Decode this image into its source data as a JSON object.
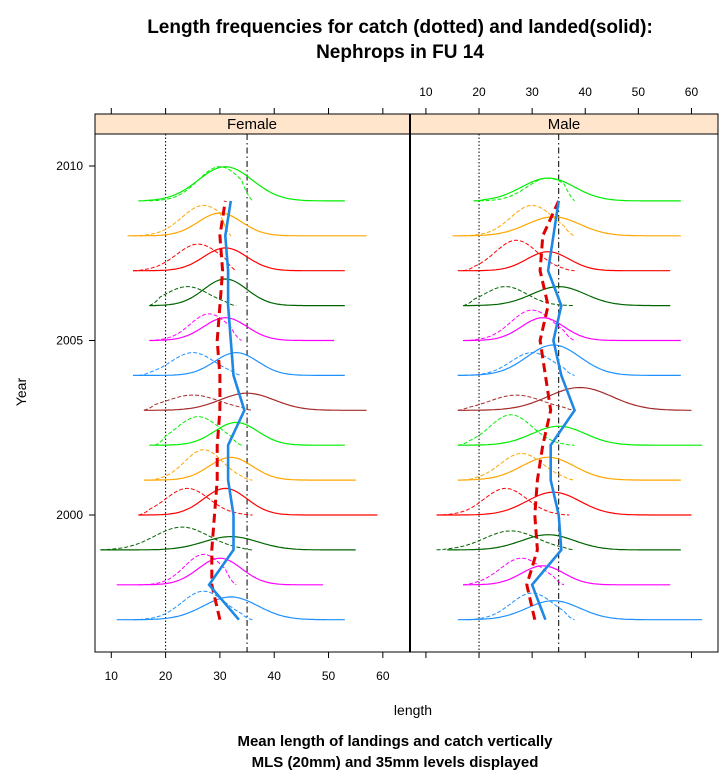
{
  "title_lines": [
    "Length frequencies for catch (dotted) and landed(solid):",
    "Nephrops in FU 14"
  ],
  "caption_lines": [
    "Mean length of landings and catch vertically",
    "MLS (20mm) and 35mm levels displayed"
  ],
  "colors": {
    "strip": "#FFE5CC",
    "landings_mean": "#1E88E5",
    "catch_mean": "#E00000",
    "years": {
      "1997": "#1E90FF",
      "1998": "#FF00FF",
      "1999": "#006400",
      "2000": "#FF0000",
      "2001": "#FFA500",
      "2002": "#00EE00",
      "2003": "#A52A2A",
      "2004": "#1E90FF",
      "2005": "#FF00FF",
      "2006": "#006400",
      "2007": "#FF0000",
      "2008": "#FFA500",
      "2009": "#00EE00"
    }
  },
  "chart_data": {
    "type": "line",
    "xlabel": "length",
    "ylabel": "Year",
    "xlim": [
      7,
      65
    ],
    "ylim": [
      1996,
      2011
    ],
    "x_ticks": [
      10,
      20,
      30,
      40,
      50,
      60
    ],
    "y_ticks": [
      2000,
      2005,
      2010
    ],
    "reference_lines": {
      "mls": 20,
      "level_35": 35
    },
    "years": [
      1997,
      1998,
      1999,
      2000,
      2001,
      2002,
      2003,
      2004,
      2005,
      2006,
      2007,
      2008,
      2009
    ],
    "panels": [
      {
        "strip": "Female",
        "landings_mean": [
          33.5,
          28.0,
          32.5,
          32.5,
          31.5,
          31.5,
          34.5,
          32.5,
          32.0,
          31.5,
          31.5,
          31.0,
          32.0
        ],
        "catch_mean": [
          30.0,
          28.5,
          28.5,
          29.0,
          29.5,
          29.5,
          30.0,
          30.0,
          29.5,
          30.0,
          30.5,
          30.0,
          31.0
        ],
        "landings": [
          {
            "start": 11,
            "end": 53,
            "peak": 32,
            "spread": 5,
            "height": 0.6
          },
          {
            "start": 11,
            "end": 49,
            "peak": 30,
            "spread": 4,
            "height": 0.7
          },
          {
            "start": 8,
            "end": 55,
            "peak": 32,
            "spread": 5,
            "height": 0.35
          },
          {
            "start": 15,
            "end": 59,
            "peak": 31,
            "spread": 4,
            "height": 0.7
          },
          {
            "start": 16,
            "end": 55,
            "peak": 32,
            "spread": 4,
            "height": 0.6
          },
          {
            "start": 17,
            "end": 53,
            "peak": 33,
            "spread": 4,
            "height": 0.6
          },
          {
            "start": 16,
            "end": 57,
            "peak": 35,
            "spread": 5,
            "height": 0.45
          },
          {
            "start": 14,
            "end": 53,
            "peak": 33,
            "spread": 4,
            "height": 0.6
          },
          {
            "start": 17,
            "end": 51,
            "peak": 31,
            "spread": 4,
            "height": 0.6
          },
          {
            "start": 17,
            "end": 53,
            "peak": 31,
            "spread": 4,
            "height": 0.7
          },
          {
            "start": 14,
            "end": 53,
            "peak": 31,
            "spread": 4,
            "height": 0.6
          },
          {
            "start": 13,
            "end": 57,
            "peak": 30,
            "spread": 4,
            "height": 0.6
          },
          {
            "start": 15,
            "end": 53,
            "peak": 31,
            "spread": 5,
            "height": 0.9
          }
        ],
        "catch": [
          {
            "start": 14,
            "end": 36,
            "peak": 27,
            "spread": 4,
            "height": 0.75
          },
          {
            "start": 15,
            "end": 33,
            "peak": 27,
            "spread": 3.5,
            "height": 0.8
          },
          {
            "start": 8,
            "end": 36,
            "peak": 23,
            "spread": 5,
            "height": 0.6
          },
          {
            "start": 15,
            "end": 36,
            "peak": 24,
            "spread": 4,
            "height": 0.7
          },
          {
            "start": 17,
            "end": 36,
            "peak": 27,
            "spread": 3.5,
            "height": 0.8
          },
          {
            "start": 18,
            "end": 34,
            "peak": 26,
            "spread": 4,
            "height": 0.75
          },
          {
            "start": 16,
            "end": 36,
            "peak": 25,
            "spread": 5,
            "height": 0.4
          },
          {
            "start": 15,
            "end": 34,
            "peak": 25,
            "spread": 4,
            "height": 0.6
          },
          {
            "start": 17,
            "end": 34,
            "peak": 28,
            "spread": 3.5,
            "height": 0.7
          },
          {
            "start": 17,
            "end": 33,
            "peak": 24,
            "spread": 4,
            "height": 0.5
          },
          {
            "start": 14,
            "end": 33,
            "peak": 26,
            "spread": 4,
            "height": 0.7
          },
          {
            "start": 14,
            "end": 32,
            "peak": 27,
            "spread": 4,
            "height": 0.8
          },
          {
            "start": 17,
            "end": 36,
            "peak": 30,
            "spread": 4,
            "height": 0.9
          }
        ]
      },
      {
        "strip": "Male",
        "landings_mean": [
          32.5,
          30.0,
          35.5,
          35.0,
          33.5,
          33.5,
          38.0,
          35.5,
          34.0,
          35.5,
          33.0,
          34.0,
          35.0
        ],
        "catch_mean": [
          30.5,
          29.0,
          31.0,
          30.5,
          31.0,
          32.0,
          33.5,
          32.5,
          31.5,
          33.0,
          31.5,
          32.0,
          35.0
        ],
        "landings": [
          {
            "start": 16,
            "end": 62,
            "peak": 34,
            "spread": 5,
            "height": 0.5
          },
          {
            "start": 17,
            "end": 56,
            "peak": 32,
            "spread": 4,
            "height": 0.5
          },
          {
            "start": 14,
            "end": 58,
            "peak": 33,
            "spread": 5,
            "height": 0.4
          },
          {
            "start": 12,
            "end": 60,
            "peak": 34,
            "spread": 5,
            "height": 0.6
          },
          {
            "start": 16,
            "end": 58,
            "peak": 33,
            "spread": 5,
            "height": 0.6
          },
          {
            "start": 16,
            "end": 62,
            "peak": 35,
            "spread": 5,
            "height": 0.5
          },
          {
            "start": 16,
            "end": 60,
            "peak": 39,
            "spread": 6,
            "height": 0.6
          },
          {
            "start": 16,
            "end": 58,
            "peak": 34,
            "spread": 5,
            "height": 0.8
          },
          {
            "start": 17,
            "end": 58,
            "peak": 32,
            "spread": 4,
            "height": 0.6
          },
          {
            "start": 17,
            "end": 56,
            "peak": 35,
            "spread": 5,
            "height": 0.5
          },
          {
            "start": 16,
            "end": 56,
            "peak": 33,
            "spread": 4,
            "height": 0.5
          },
          {
            "start": 15,
            "end": 58,
            "peak": 34,
            "spread": 5,
            "height": 0.5
          },
          {
            "start": 19,
            "end": 58,
            "peak": 33,
            "spread": 5,
            "height": 0.6
          }
        ],
        "catch": [
          {
            "start": 18,
            "end": 38,
            "peak": 30,
            "spread": 4,
            "height": 0.7
          },
          {
            "start": 17,
            "end": 36,
            "peak": 28,
            "spread": 4,
            "height": 0.7
          },
          {
            "start": 12,
            "end": 38,
            "peak": 26,
            "spread": 5,
            "height": 0.5
          },
          {
            "start": 12,
            "end": 37,
            "peak": 25,
            "spread": 4,
            "height": 0.7
          },
          {
            "start": 17,
            "end": 38,
            "peak": 28,
            "spread": 4,
            "height": 0.7
          },
          {
            "start": 16,
            "end": 38,
            "peak": 26,
            "spread": 4,
            "height": 0.8
          },
          {
            "start": 16,
            "end": 38,
            "peak": 27,
            "spread": 5,
            "height": 0.4
          },
          {
            "start": 16,
            "end": 38,
            "peak": 30,
            "spread": 4,
            "height": 0.6
          },
          {
            "start": 17,
            "end": 38,
            "peak": 30,
            "spread": 4,
            "height": 0.8
          },
          {
            "start": 17,
            "end": 38,
            "peak": 25,
            "spread": 4,
            "height": 0.5
          },
          {
            "start": 17,
            "end": 38,
            "peak": 27,
            "spread": 4,
            "height": 0.8
          },
          {
            "start": 17,
            "end": 38,
            "peak": 30,
            "spread": 4,
            "height": 0.8
          },
          {
            "start": 19,
            "end": 38,
            "peak": 33,
            "spread": 4,
            "height": 0.6
          }
        ]
      }
    ]
  }
}
